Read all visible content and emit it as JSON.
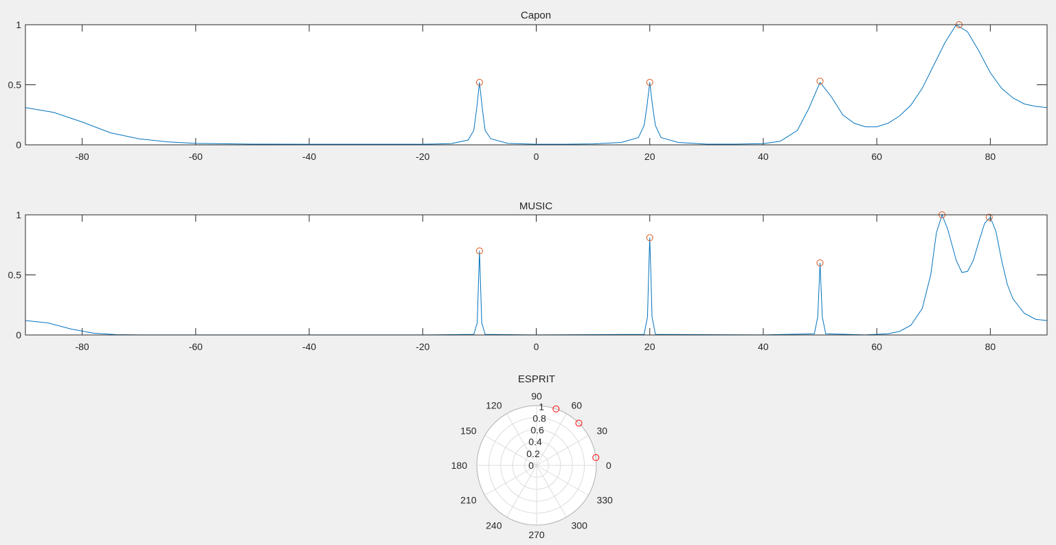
{
  "colors": {
    "figure_background": "#f0f0f0",
    "axes_background": "#ffffff",
    "axis": "#262626",
    "spectrum_line": "#0072bd",
    "peak_marker_cartesian": "#d95319",
    "peak_marker_polar": "#ff0000",
    "polar_grid": "#dcdcdc"
  },
  "chart_data": [
    {
      "type": "line",
      "title": "Capon",
      "xlabel": "",
      "ylabel": "",
      "xlim": [
        -90,
        90
      ],
      "ylim": [
        0,
        1
      ],
      "xticks": [
        "-80",
        "-60",
        "-40",
        "-20",
        "0",
        "20",
        "40",
        "60",
        "80"
      ],
      "yticks": [
        "0",
        "0.5",
        "1"
      ],
      "grid": false,
      "series": [
        {
          "x": [
            -90,
            -85,
            -80,
            -75,
            -70,
            -65,
            -60,
            -50,
            -40,
            -30,
            -20,
            -15,
            -12,
            -11,
            -10.5,
            -10,
            -9.5,
            -9,
            -8,
            -5,
            0,
            5,
            10,
            15,
            18,
            19,
            19.5,
            20,
            20.5,
            21,
            22,
            25,
            30,
            35,
            40,
            43,
            46,
            48,
            50,
            52,
            54,
            56,
            58,
            60,
            62,
            64,
            66,
            68,
            70,
            72,
            74,
            76,
            78,
            80,
            82,
            84,
            86,
            88,
            90
          ],
          "y": [
            0.31,
            0.27,
            0.19,
            0.1,
            0.05,
            0.025,
            0.012,
            0.006,
            0.005,
            0.005,
            0.005,
            0.01,
            0.04,
            0.12,
            0.3,
            0.52,
            0.3,
            0.12,
            0.05,
            0.012,
            0.005,
            0.005,
            0.008,
            0.02,
            0.06,
            0.16,
            0.32,
            0.52,
            0.32,
            0.16,
            0.06,
            0.02,
            0.006,
            0.006,
            0.01,
            0.03,
            0.12,
            0.3,
            0.52,
            0.4,
            0.25,
            0.18,
            0.15,
            0.15,
            0.18,
            0.24,
            0.33,
            0.47,
            0.66,
            0.85,
            1.0,
            0.94,
            0.78,
            0.6,
            0.47,
            0.39,
            0.34,
            0.32,
            0.31
          ]
        }
      ],
      "peaks": [
        {
          "x": -10,
          "y": 0.52
        },
        {
          "x": 20,
          "y": 0.52
        },
        {
          "x": 50,
          "y": 0.53
        },
        {
          "x": 74.5,
          "y": 1.0
        }
      ]
    },
    {
      "type": "line",
      "title": "MUSIC",
      "xlabel": "",
      "ylabel": "",
      "xlim": [
        -90,
        90
      ],
      "ylim": [
        0,
        1
      ],
      "xticks": [
        "-80",
        "-60",
        "-40",
        "-20",
        "0",
        "20",
        "40",
        "60",
        "80"
      ],
      "yticks": [
        "0",
        "0.5",
        "1"
      ],
      "grid": false,
      "series": [
        {
          "x": [
            -90,
            -86,
            -82,
            -78,
            -74,
            -70,
            -60,
            -40,
            -20,
            -11,
            -10.4,
            -10,
            -9.6,
            -9,
            0,
            19,
            19.6,
            19.8,
            20,
            20.2,
            20.4,
            21,
            40,
            49,
            49.6,
            50,
            50.4,
            51,
            58,
            62,
            64,
            66,
            68,
            69.5,
            70.5,
            71.5,
            72.5,
            74,
            75,
            76,
            77,
            78,
            79,
            80,
            81,
            82,
            83,
            84,
            86,
            88,
            90
          ],
          "y": [
            0.12,
            0.1,
            0.05,
            0.015,
            0.003,
            0.001,
            0.0005,
            0.0005,
            0.0005,
            0.005,
            0.1,
            0.7,
            0.1,
            0.005,
            0.0005,
            0.005,
            0.15,
            0.5,
            0.81,
            0.5,
            0.15,
            0.005,
            0.0005,
            0.01,
            0.15,
            0.6,
            0.15,
            0.01,
            0.001,
            0.01,
            0.03,
            0.08,
            0.22,
            0.5,
            0.85,
            1.0,
            0.88,
            0.62,
            0.52,
            0.53,
            0.62,
            0.78,
            0.93,
            0.98,
            0.86,
            0.62,
            0.42,
            0.3,
            0.18,
            0.13,
            0.12
          ]
        }
      ],
      "peaks": [
        {
          "x": -10,
          "y": 0.7
        },
        {
          "x": 20,
          "y": 0.81
        },
        {
          "x": 50,
          "y": 0.6
        },
        {
          "x": 71.5,
          "y": 1.0
        },
        {
          "x": 79.8,
          "y": 0.98
        }
      ]
    },
    {
      "type": "scatter",
      "subtype": "polar",
      "title": "ESPRIT",
      "rlim": [
        0,
        1
      ],
      "rticks": [
        "0",
        "0.2",
        "0.4",
        "0.6",
        "0.8",
        "1"
      ],
      "thetaticks": [
        "0",
        "30",
        "60",
        "90",
        "120",
        "150",
        "180",
        "210",
        "240",
        "270",
        "300",
        "330"
      ],
      "theta_unit": "degrees",
      "points": [
        {
          "theta": 7.5,
          "r": 1
        },
        {
          "theta": 45,
          "r": 1
        },
        {
          "theta": 71,
          "r": 1
        }
      ]
    }
  ]
}
